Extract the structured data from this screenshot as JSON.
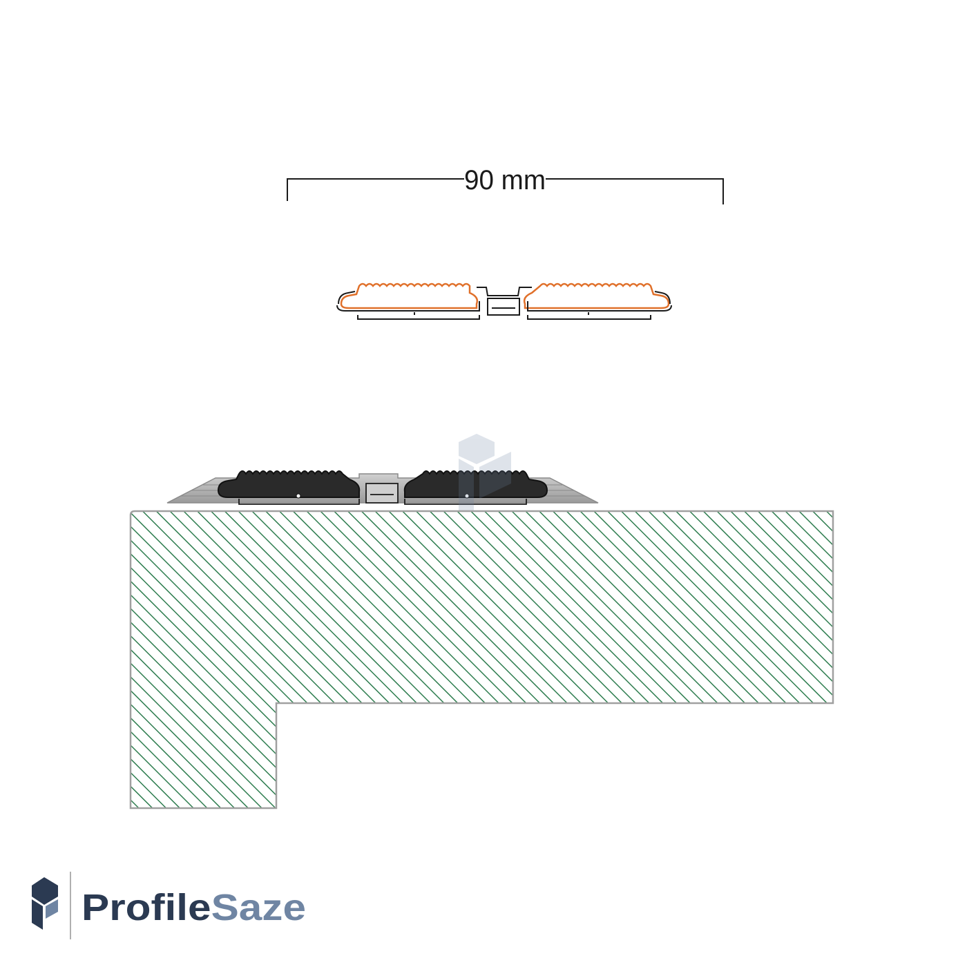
{
  "dimension": {
    "label": "90 mm"
  },
  "brand": {
    "name_part1": "Profile",
    "name_part2": "Saze",
    "color_dark": "#2b3a52",
    "color_light": "#6f85a3"
  },
  "colors": {
    "hatch": "#2e7d4f",
    "insert_outline": "#e0702a",
    "profile_outline": "#1a1a1a",
    "rubber_insert": "#2a2a2a",
    "aluminium": "#b8b8b8",
    "block_border": "#a0a0a0"
  },
  "icons": [
    "logo-icon",
    "watermark-logo-icon"
  ]
}
